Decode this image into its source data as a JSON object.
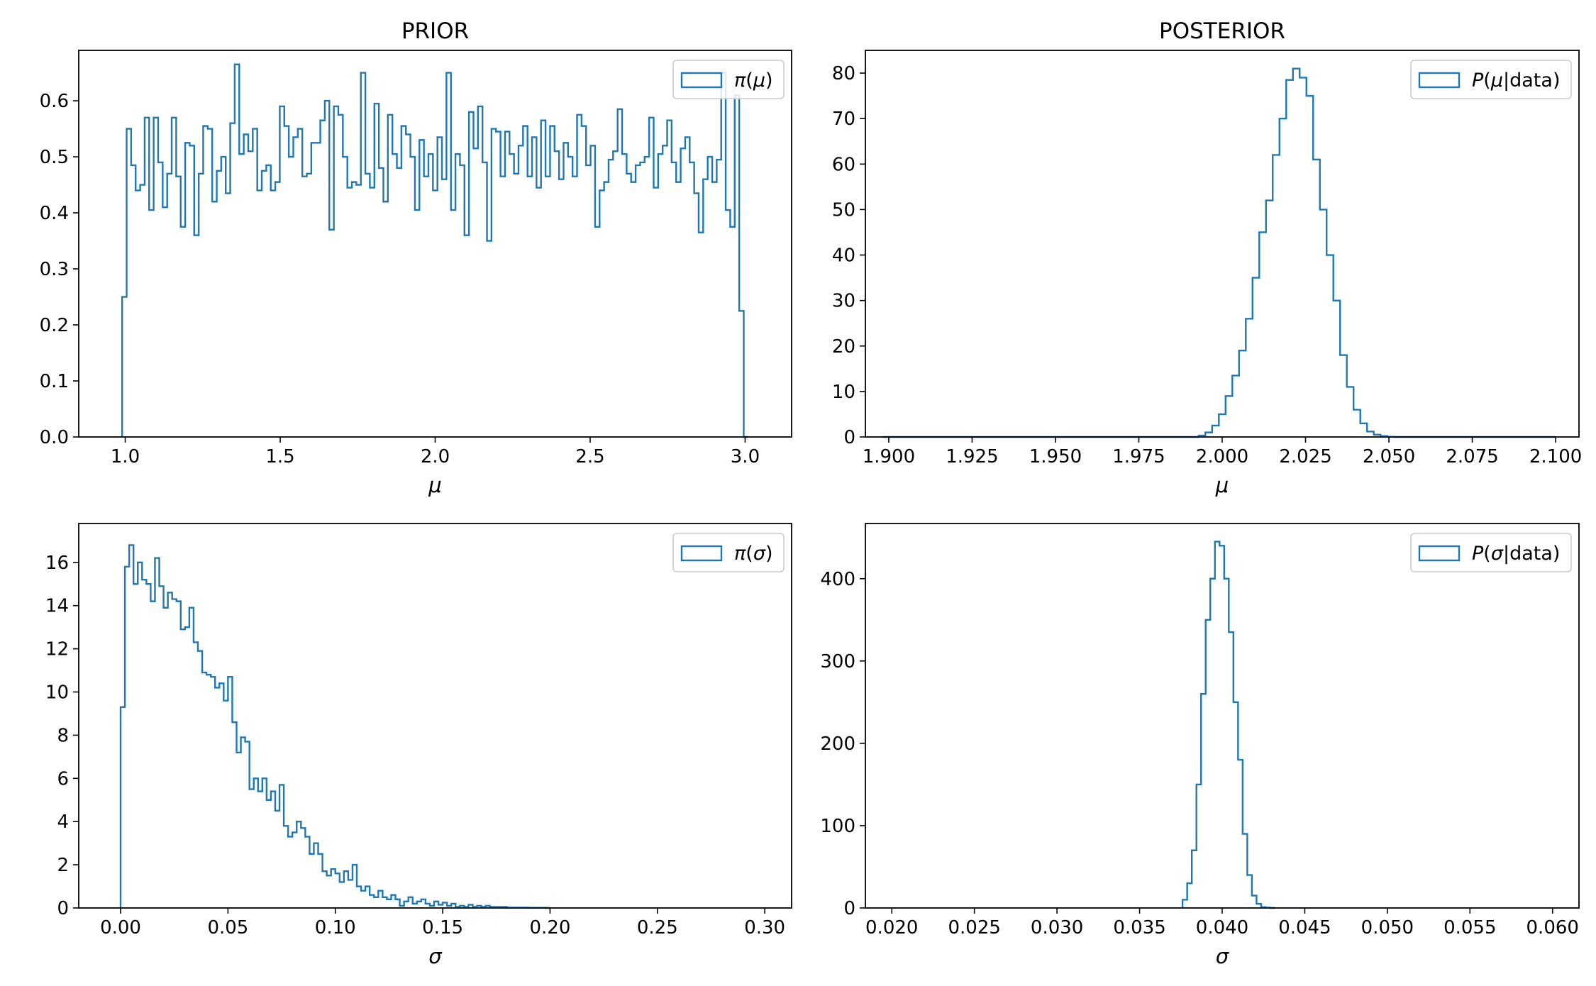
{
  "colors": {
    "series": "#1f77b4",
    "axes": "#000000",
    "background": "#ffffff"
  },
  "chart_data": [
    {
      "type": "histogram-step",
      "title": "PRIOR",
      "xlabel": "μ",
      "ylabel": "",
      "xlim": [
        0.85,
        3.15
      ],
      "ylim": [
        0,
        0.69
      ],
      "xticks": [
        1.0,
        1.5,
        2.0,
        2.5,
        3.0
      ],
      "xtick_labels": [
        "1.0",
        "1.5",
        "2.0",
        "2.5",
        "3.0"
      ],
      "yticks": [
        0,
        0.1,
        0.2,
        0.3,
        0.4,
        0.5,
        0.6
      ],
      "ytick_labels": [
        "0.0",
        "0.1",
        "0.2",
        "0.3",
        "0.4",
        "0.5",
        "0.6"
      ],
      "legend": {
        "label": "π(μ)",
        "loc": "upper right"
      },
      "grid": false,
      "series": [
        {
          "name": "π(μ)",
          "bin_start": 0.99,
          "bin_end": 3.01,
          "values": [
            0.25,
            0.55,
            0.485,
            0.44,
            0.45,
            0.57,
            0.405,
            0.57,
            0.49,
            0.41,
            0.47,
            0.57,
            0.465,
            0.375,
            0.525,
            0.52,
            0.36,
            0.47,
            0.555,
            0.55,
            0.42,
            0.475,
            0.5,
            0.435,
            0.56,
            0.665,
            0.505,
            0.54,
            0.51,
            0.55,
            0.44,
            0.475,
            0.485,
            0.44,
            0.455,
            0.59,
            0.555,
            0.5,
            0.535,
            0.55,
            0.465,
            0.47,
            0.525,
            0.525,
            0.565,
            0.6,
            0.37,
            0.59,
            0.575,
            0.5,
            0.445,
            0.455,
            0.45,
            0.65,
            0.47,
            0.445,
            0.595,
            0.48,
            0.42,
            0.575,
            0.505,
            0.48,
            0.555,
            0.54,
            0.5,
            0.405,
            0.53,
            0.465,
            0.505,
            0.44,
            0.535,
            0.46,
            0.65,
            0.405,
            0.505,
            0.485,
            0.36,
            0.58,
            0.515,
            0.59,
            0.49,
            0.35,
            0.55,
            0.545,
            0.465,
            0.545,
            0.505,
            0.47,
            0.52,
            0.555,
            0.465,
            0.535,
            0.445,
            0.565,
            0.465,
            0.555,
            0.51,
            0.46,
            0.525,
            0.5,
            0.465,
            0.575,
            0.555,
            0.485,
            0.52,
            0.375,
            0.44,
            0.455,
            0.495,
            0.51,
            0.585,
            0.505,
            0.47,
            0.455,
            0.485,
            0.49,
            0.5,
            0.57,
            0.445,
            0.505,
            0.52,
            0.565,
            0.49,
            0.455,
            0.515,
            0.535,
            0.49,
            0.435,
            0.365,
            0.46,
            0.5,
            0.455,
            0.495,
            0.65,
            0.405,
            0.375,
            0.61,
            0.225,
            0.0
          ]
        }
      ]
    },
    {
      "type": "histogram-step",
      "title": "POSTERIOR",
      "xlabel": "μ",
      "ylabel": "",
      "xlim": [
        1.893,
        2.107
      ],
      "ylim": [
        0,
        85
      ],
      "xticks": [
        1.9,
        1.925,
        1.95,
        1.975,
        2.0,
        2.025,
        2.05,
        2.075,
        2.1
      ],
      "xtick_labels": [
        "1.900",
        "1.925",
        "1.950",
        "1.975",
        "2.000",
        "2.025",
        "2.050",
        "2.075",
        "2.100"
      ],
      "yticks": [
        0,
        10,
        20,
        30,
        40,
        50,
        60,
        70,
        80
      ],
      "ytick_labels": [
        "0",
        "10",
        "20",
        "30",
        "40",
        "50",
        "60",
        "70",
        "80"
      ],
      "legend": {
        "label": "P(μ|data)",
        "loc": "upper right"
      },
      "grid": false,
      "series": [
        {
          "name": "P(μ|data)",
          "bin_start": 1.898,
          "bin_end": 2.1,
          "values": [
            0,
            0,
            0,
            0,
            0,
            0,
            0,
            0,
            0,
            0,
            0,
            0,
            0,
            0,
            0,
            0,
            0,
            0,
            0,
            0,
            0,
            0,
            0,
            0,
            0,
            0,
            0,
            0,
            0,
            0,
            0,
            0,
            0,
            0,
            0,
            0,
            0,
            0,
            0,
            0,
            0,
            0,
            0,
            0,
            0,
            0,
            0,
            0.3,
            1,
            2.5,
            5,
            9,
            13.5,
            19,
            26,
            35,
            45,
            52,
            62,
            70,
            78.5,
            81,
            79,
            75,
            61,
            50,
            40,
            30,
            18,
            11,
            6,
            3,
            1.2,
            0.5,
            0.2,
            0.05,
            0,
            0,
            0,
            0,
            0,
            0,
            0,
            0,
            0,
            0,
            0,
            0,
            0,
            0,
            0,
            0,
            0,
            0,
            0,
            0,
            0,
            0,
            0,
            0
          ]
        }
      ]
    },
    {
      "type": "histogram-step",
      "title": "",
      "xlabel": "σ",
      "ylabel": "",
      "xlim": [
        -0.0195,
        0.3125
      ],
      "ylim": [
        0,
        17.8
      ],
      "xticks": [
        0.0,
        0.05,
        0.1,
        0.15,
        0.2,
        0.25,
        0.3
      ],
      "xtick_labels": [
        "0.00",
        "0.05",
        "0.10",
        "0.15",
        "0.20",
        "0.25",
        "0.30"
      ],
      "yticks": [
        0,
        2,
        4,
        6,
        8,
        10,
        12,
        14,
        16
      ],
      "ytick_labels": [
        "0",
        "2",
        "4",
        "6",
        "8",
        "10",
        "12",
        "14",
        "16"
      ],
      "legend": {
        "label": "π(σ)",
        "loc": "upper right"
      },
      "grid": false,
      "series": [
        {
          "name": "π(σ)",
          "bin_start": 0.0,
          "bin_end": 0.2,
          "values": [
            9.3,
            15.8,
            16.8,
            15.0,
            16.0,
            15.2,
            15.0,
            14.2,
            16.2,
            14.9,
            13.9,
            14.6,
            14.3,
            14.2,
            12.9,
            13.0,
            13.9,
            12.3,
            11.9,
            10.9,
            10.8,
            10.7,
            10.2,
            10.4,
            9.6,
            10.7,
            8.6,
            7.2,
            7.9,
            7.7,
            5.5,
            6.0,
            5.4,
            6.0,
            5.0,
            5.4,
            4.5,
            5.7,
            3.8,
            3.3,
            3.5,
            4.0,
            3.7,
            3.3,
            2.5,
            3.0,
            2.5,
            1.7,
            1.5,
            1.8,
            1.6,
            1.2,
            1.7,
            1.3,
            2.0,
            1.0,
            0.8,
            1.0,
            0.6,
            0.5,
            0.8,
            0.5,
            0.4,
            0.6,
            0.4,
            0.1,
            0.3,
            0.5,
            0.2,
            0.3,
            0.4,
            0.2,
            0.1,
            0.3,
            0.15,
            0.25,
            0.1,
            0.2,
            0.05,
            0.1,
            0.05,
            0.15,
            0.05,
            0.1,
            0.05,
            0.1,
            0.05,
            0.05,
            0.05,
            0.05,
            0.02,
            0.02,
            0.02,
            0.02,
            0.02,
            0.01,
            0.01,
            0.01,
            0.01,
            0
          ]
        }
      ]
    },
    {
      "type": "histogram-step",
      "title": "",
      "xlabel": "σ",
      "ylabel": "",
      "xlim": [
        0.0184,
        0.0616
      ],
      "ylim": [
        0,
        467
      ],
      "xticks": [
        0.02,
        0.025,
        0.03,
        0.035,
        0.04,
        0.045,
        0.05,
        0.055,
        0.06
      ],
      "xtick_labels": [
        "0.020",
        "0.025",
        "0.030",
        "0.035",
        "0.040",
        "0.045",
        "0.050",
        "0.055",
        "0.060"
      ],
      "yticks": [
        0,
        100,
        200,
        300,
        400
      ],
      "ytick_labels": [
        "0",
        "100",
        "200",
        "300",
        "400"
      ],
      "legend": {
        "label": "P(σ|data)",
        "loc": "upper right"
      },
      "grid": false,
      "series": [
        {
          "name": "P(σ|data)",
          "bin_start": 0.0376,
          "bin_end": 0.0432,
          "values": [
            10,
            30,
            70,
            150,
            260,
            350,
            400,
            445,
            440,
            400,
            335,
            250,
            180,
            90,
            40,
            15,
            5,
            1,
            0.5,
            0
          ]
        }
      ]
    }
  ]
}
